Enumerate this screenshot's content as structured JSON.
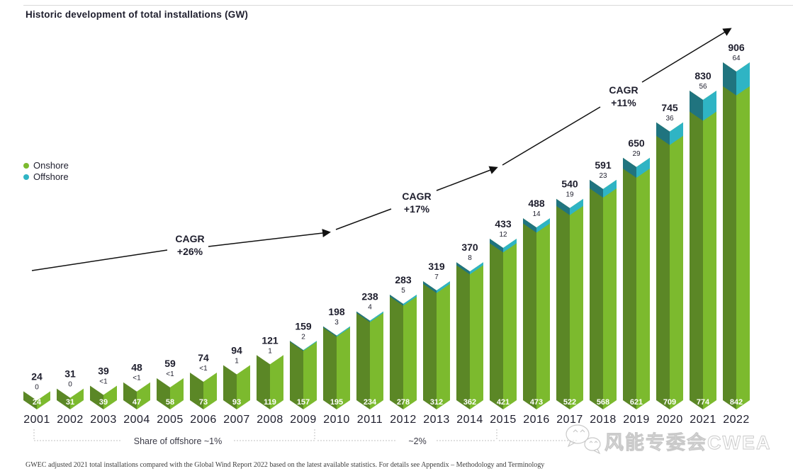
{
  "page": {
    "title": "Historic development of total installations (GW)",
    "footnote": "GWEC adjusted 2021 total installations compared with the Global Wind Report 2022 based on the latest available statistics. For details see Appendix – Methodology and Terminology",
    "watermark": "风能专委会CWEA"
  },
  "legend": {
    "onshore": "Onshore",
    "offshore": "Offshore"
  },
  "colors": {
    "onshore_dark": "#5b8726",
    "onshore_light": "#7cba2e",
    "offshore_dark": "#20747f",
    "offshore_light": "#2fb4c4",
    "text": "#1e1e2d",
    "trend": "#111111",
    "dotted": "#c0c0c0"
  },
  "chart_data": {
    "type": "bar",
    "stacked": true,
    "title": "Historic development of total installations (GW)",
    "unit": "GW",
    "categories": [
      "2001",
      "2002",
      "2003",
      "2004",
      "2005",
      "2006",
      "2007",
      "2008",
      "2009",
      "2010",
      "2011",
      "2012",
      "2013",
      "2014",
      "2015",
      "2016",
      "2017",
      "2018",
      "2019",
      "2020",
      "2021",
      "2022"
    ],
    "series": [
      {
        "name": "Onshore",
        "values": [
          24,
          31,
          39,
          47,
          58,
          73,
          93,
          119,
          157,
          195,
          234,
          278,
          312,
          362,
          421,
          473,
          522,
          568,
          621,
          709,
          774,
          842
        ]
      },
      {
        "name": "Offshore",
        "values": [
          0,
          0,
          0.5,
          0.5,
          0.5,
          0.5,
          1,
          1,
          2,
          3,
          4,
          5,
          7,
          8,
          12,
          14,
          19,
          23,
          29,
          36,
          56,
          64
        ],
        "labels": [
          "0",
          "0",
          "<1",
          "<1",
          "<1",
          "<1",
          "1",
          "1",
          "2",
          "3",
          "4",
          "5",
          "7",
          "8",
          "12",
          "14",
          "19",
          "23",
          "29",
          "36",
          "56",
          "64"
        ]
      }
    ],
    "totals": [
      24,
      31,
      39,
      48,
      59,
      74,
      94,
      121,
      159,
      198,
      238,
      283,
      319,
      370,
      433,
      488,
      540,
      591,
      650,
      745,
      830,
      906
    ],
    "ylim": [
      0,
      950
    ],
    "grid": false,
    "legend_position": "upper-left",
    "annotations": {
      "cagr": [
        {
          "line1": "CAGR",
          "line2": "+26%"
        },
        {
          "line1": "CAGR",
          "line2": "+17%"
        },
        {
          "line1": "CAGR",
          "line2": "+11%"
        }
      ],
      "share_brackets": [
        {
          "label": "Share of offshore ~1%"
        },
        {
          "label": "~2%"
        }
      ]
    }
  }
}
